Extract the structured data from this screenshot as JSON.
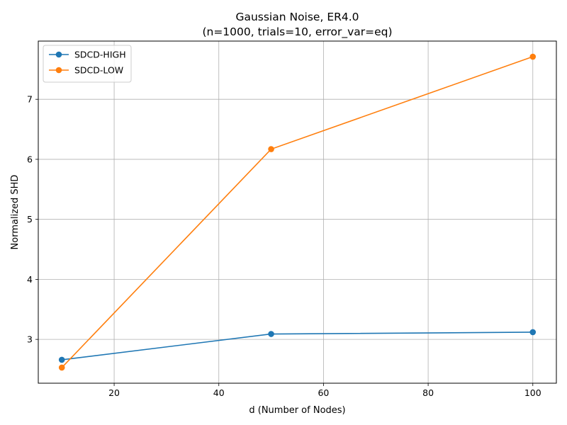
{
  "chart_data": {
    "type": "line",
    "title": "Gaussian Noise, ER4.0",
    "subtitle": "(n=1000, trials=10, error_var=eq)",
    "xlabel": "d (Number of Nodes)",
    "ylabel": "Normalized SHD",
    "x": [
      10,
      50,
      100
    ],
    "series": [
      {
        "name": "SDCD-HIGH",
        "color": "#1f77b4",
        "values": [
          2.66,
          3.09,
          3.12
        ]
      },
      {
        "name": "SDCD-LOW",
        "color": "#ff7f0e",
        "values": [
          2.53,
          6.17,
          7.71
        ]
      }
    ],
    "xlim": [
      5.5,
      104.5
    ],
    "ylim": [
      2.27,
      7.97
    ],
    "xticks": [
      20,
      40,
      60,
      80,
      100
    ],
    "yticks": [
      3,
      4,
      5,
      6,
      7
    ],
    "grid": true,
    "legend_position": "top-left",
    "marker": "circle"
  }
}
